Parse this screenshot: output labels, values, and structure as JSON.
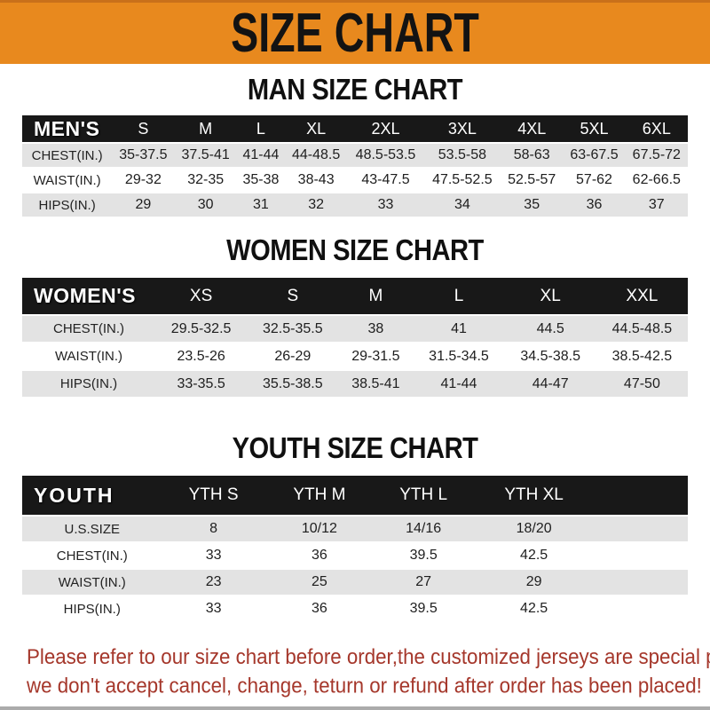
{
  "banner": {
    "title": "SIZE CHART"
  },
  "sections": [
    {
      "title": "MAN SIZE CHART",
      "header_label": "MEN'S",
      "columns": [
        "S",
        "M",
        "L",
        "XL",
        "2XL",
        "3XL",
        "4XL",
        "5XL",
        "6XL"
      ],
      "rows": [
        {
          "label": "CHEST(IN.)",
          "values": [
            "35-37.5",
            "37.5-41",
            "41-44",
            "44-48.5",
            "48.5-53.5",
            "53.5-58",
            "58-63",
            "63-67.5",
            "67.5-72"
          ]
        },
        {
          "label": "WAIST(IN.)",
          "values": [
            "29-32",
            "32-35",
            "35-38",
            "38-43",
            "43-47.5",
            "47.5-52.5",
            "52.5-57",
            "57-62",
            "62-66.5"
          ]
        },
        {
          "label": "HIPS(IN.)",
          "values": [
            "29",
            "30",
            "31",
            "32",
            "33",
            "34",
            "35",
            "36",
            "37"
          ]
        }
      ]
    },
    {
      "title": "WOMEN SIZE CHART",
      "header_label": "WOMEN'S",
      "columns": [
        "XS",
        "S",
        "M",
        "L",
        "XL",
        "XXL"
      ],
      "rows": [
        {
          "label": "CHEST(IN.)",
          "values": [
            "29.5-32.5",
            "32.5-35.5",
            "38",
            "41",
            "44.5",
            "44.5-48.5"
          ]
        },
        {
          "label": "WAIST(IN.)",
          "values": [
            "23.5-26",
            "26-29",
            "29-31.5",
            "31.5-34.5",
            "34.5-38.5",
            "38.5-42.5"
          ]
        },
        {
          "label": "HIPS(IN.)",
          "values": [
            "33-35.5",
            "35.5-38.5",
            "38.5-41",
            "41-44",
            "44-47",
            "47-50"
          ]
        }
      ]
    },
    {
      "title": "YOUTH SIZE CHART",
      "header_label": "YOUTH",
      "columns": [
        "YTH S",
        "YTH M",
        "YTH L",
        "YTH XL"
      ],
      "rows": [
        {
          "label": "U.S.SIZE",
          "values": [
            "8",
            "10/12",
            "14/16",
            "18/20"
          ]
        },
        {
          "label": "CHEST(IN.)",
          "values": [
            "33",
            "36",
            "39.5",
            "42.5"
          ]
        },
        {
          "label": "WAIST(IN.)",
          "values": [
            "23",
            "25",
            "27",
            "29"
          ]
        },
        {
          "label": "HIPS(IN.)",
          "values": [
            "33",
            "36",
            "39.5",
            "42.5"
          ]
        }
      ]
    }
  ],
  "footer": {
    "line1": "Please refer to our size chart before order,the customized jerseys are special products,",
    "line2": "we don't accept cancel, change, teturn or refund after order has been placed!"
  },
  "colors": {
    "banner_orange": "#E8891E",
    "header_black": "#181818",
    "row_gray": "#E3E3E3",
    "note_red": "#A5372B"
  }
}
